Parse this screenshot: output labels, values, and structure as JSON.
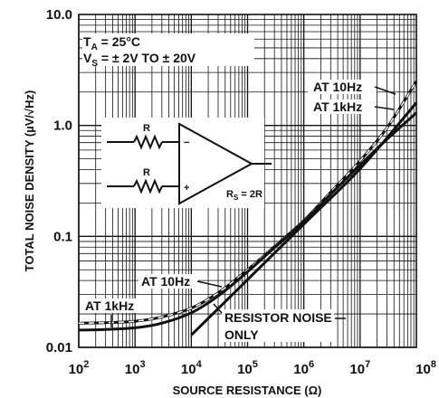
{
  "chart_data": {
    "type": "line",
    "x_scale": "log",
    "y_scale": "log",
    "xlim": [
      100,
      100000000
    ],
    "ylim": [
      0.01,
      10
    ],
    "xlabel": "SOURCE RESISTANCE (Ω)",
    "ylabel": "TOTAL NOISE DENSITY (µV/√Hz)",
    "x_tick_labels": [
      {
        "value": 100,
        "base": "10",
        "exp": "2"
      },
      {
        "value": 1000,
        "base": "10",
        "exp": "3"
      },
      {
        "value": 10000,
        "base": "10",
        "exp": "4"
      },
      {
        "value": 100000,
        "base": "10",
        "exp": "5"
      },
      {
        "value": 1000000,
        "base": "10",
        "exp": "6"
      },
      {
        "value": 10000000,
        "base": "10",
        "exp": "7"
      },
      {
        "value": 100000000,
        "base": "10",
        "exp": "8"
      }
    ],
    "y_tick_labels": [
      {
        "value": 0.01,
        "label": "0.01"
      },
      {
        "value": 0.1,
        "label": "0.1"
      },
      {
        "value": 1,
        "label": "1.0"
      },
      {
        "value": 10,
        "label": "10.0"
      }
    ],
    "grid": true,
    "conditions": {
      "ta_main": "T",
      "ta_sub": "A",
      "ta_rest": " = 25°C",
      "vs_main": "V",
      "vs_sub": "S",
      "vs_rest": " = ± 2V TO ± 20V"
    },
    "annotations": {
      "at10_upper": "AT 10Hz",
      "at1k_upper": "AT 1kHz",
      "at10_lower": "AT 10Hz",
      "at1k_lower": "AT 1kHz",
      "resistor_noise_line1": "RESISTOR NOISE",
      "resistor_noise_line2": "ONLY"
    },
    "inset": {
      "r_top": "R",
      "r_bottom": "R",
      "rs_main": "R",
      "rs_sub": "S",
      "rs_rest": " = 2R",
      "minus": "−",
      "plus": "+"
    },
    "series": [
      {
        "name": "AT 10Hz",
        "x": [
          100,
          300,
          1000,
          3000,
          10000,
          30000,
          100000,
          300000,
          1000000,
          3000000,
          10000000,
          30000000,
          100000000
        ],
        "y": [
          0.0165,
          0.0167,
          0.0172,
          0.0188,
          0.0226,
          0.031,
          0.05,
          0.081,
          0.139,
          0.25,
          0.48,
          0.95,
          2.5
        ]
      },
      {
        "name": "AT 1kHz",
        "x": [
          100,
          300,
          1000,
          3000,
          10000,
          30000,
          100000,
          300000,
          1000000,
          3000000,
          10000000,
          30000000,
          100000000
        ],
        "y": [
          0.0143,
          0.0145,
          0.015,
          0.0165,
          0.0205,
          0.029,
          0.048,
          0.079,
          0.136,
          0.24,
          0.44,
          0.75,
          1.3
        ]
      },
      {
        "name": "RESISTOR NOISE ONLY",
        "x": [
          10000,
          100000,
          1000000,
          10000000,
          100000000
        ],
        "y": [
          0.0129,
          0.0407,
          0.129,
          0.407,
          1.6
        ]
      }
    ]
  }
}
